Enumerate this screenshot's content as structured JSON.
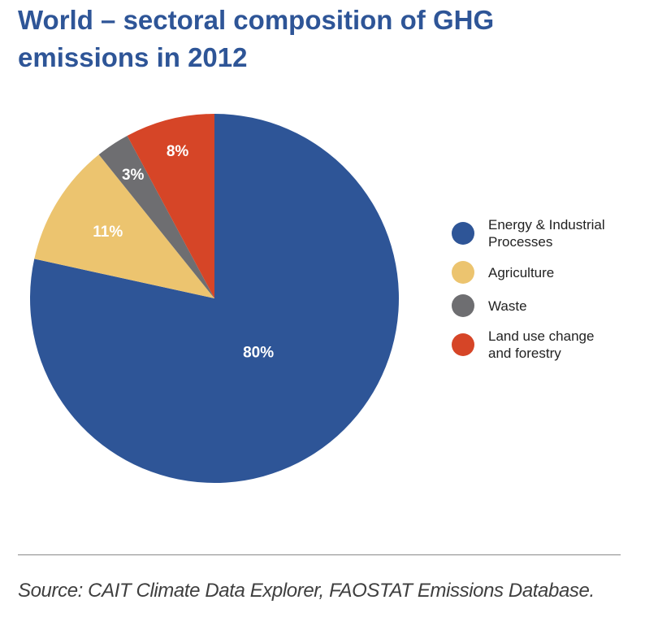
{
  "chart_data": {
    "type": "pie",
    "title": "World – sectoral composition of GHG emissions in 2012",
    "slices": [
      {
        "label": "Energy & Industrial Processes",
        "legend_text": "Energy & Industrial\nProcesses",
        "value": 80,
        "value_label": "80%",
        "color": "#2e5597"
      },
      {
        "label": "Agriculture",
        "legend_text": "Agriculture",
        "value": 11,
        "value_label": "11%",
        "color": "#ecc46f"
      },
      {
        "label": "Waste",
        "legend_text": "Waste",
        "value": 3,
        "value_label": "3%",
        "color": "#6e6e71"
      },
      {
        "label": "Land use change and forestry",
        "legend_text": "Land use change\nand forestry",
        "value": 8,
        "value_label": "8%",
        "color": "#d64527"
      }
    ],
    "legend_position": "right"
  },
  "source": "Source: CAIT Climate Data Explorer, FAOSTAT Emissions Database."
}
